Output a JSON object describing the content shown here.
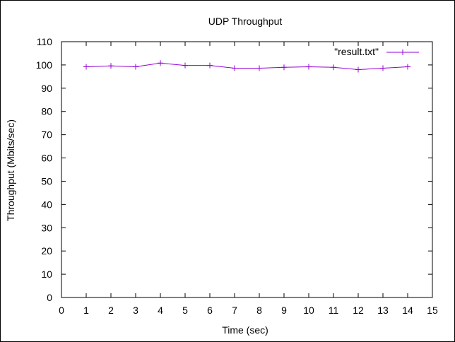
{
  "chart_data": {
    "type": "line",
    "title": "UDP Throughput",
    "xlabel": "Time (sec)",
    "ylabel": "Throughput (Mbits/sec)",
    "xlim": [
      0,
      15
    ],
    "ylim": [
      0,
      110
    ],
    "xticks": [
      0,
      1,
      2,
      3,
      4,
      5,
      6,
      7,
      8,
      9,
      10,
      11,
      12,
      13,
      14,
      15
    ],
    "yticks": [
      0,
      10,
      20,
      30,
      40,
      50,
      60,
      70,
      80,
      90,
      100,
      110
    ],
    "grid": false,
    "legend_position": "top-right",
    "series": [
      {
        "name": "\"result.txt\"",
        "color": "#9400d3",
        "marker": "plus",
        "x": [
          1,
          2,
          3,
          4,
          5,
          6,
          7,
          8,
          9,
          10,
          11,
          12,
          13,
          14
        ],
        "y": [
          99.2,
          99.6,
          99.2,
          100.8,
          99.8,
          99.8,
          98.6,
          98.6,
          99.0,
          99.2,
          99.0,
          98.0,
          98.6,
          99.2
        ]
      }
    ]
  }
}
